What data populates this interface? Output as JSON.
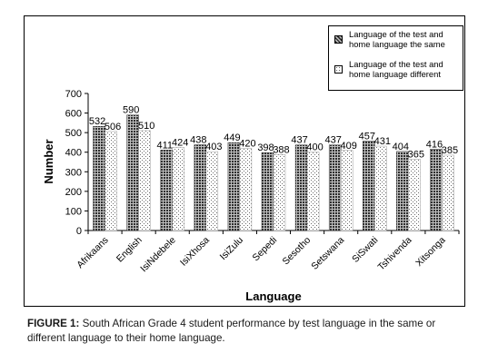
{
  "chart_data": {
    "type": "bar",
    "categories": [
      "Afrikaans",
      "English",
      "IsiNdebele",
      "IsiXhosa",
      "IsiZulu",
      "Sepedi",
      "Sesotho",
      "Setswana",
      "SiSwati",
      "Tshivenda",
      "Xitsonga"
    ],
    "series": [
      {
        "name": "Language of the test and home language the same",
        "values": [
          532,
          590,
          411,
          438,
          449,
          398,
          437,
          437,
          457,
          404,
          416
        ],
        "pattern": "dark-checker"
      },
      {
        "name": "Language of the test and home language different",
        "values": [
          506,
          510,
          424,
          403,
          420,
          388,
          400,
          409,
          431,
          365,
          385
        ],
        "pattern": "light-dots"
      }
    ],
    "xlabel": "Language",
    "ylabel": "Number",
    "ylim": [
      0,
      700
    ],
    "yticks": [
      0,
      100,
      200,
      300,
      400,
      500,
      600,
      700
    ],
    "grid": false,
    "legend_position": "top-right",
    "data_labels": true
  },
  "caption": {
    "label": "FIGURE 1:",
    "text": " South African Grade 4 student performance by test language in the same or different language to their home language."
  },
  "colors": {
    "dark_pattern": "#3a3a3a",
    "light_pattern": "#8a8a8a",
    "axis": "#000000"
  }
}
